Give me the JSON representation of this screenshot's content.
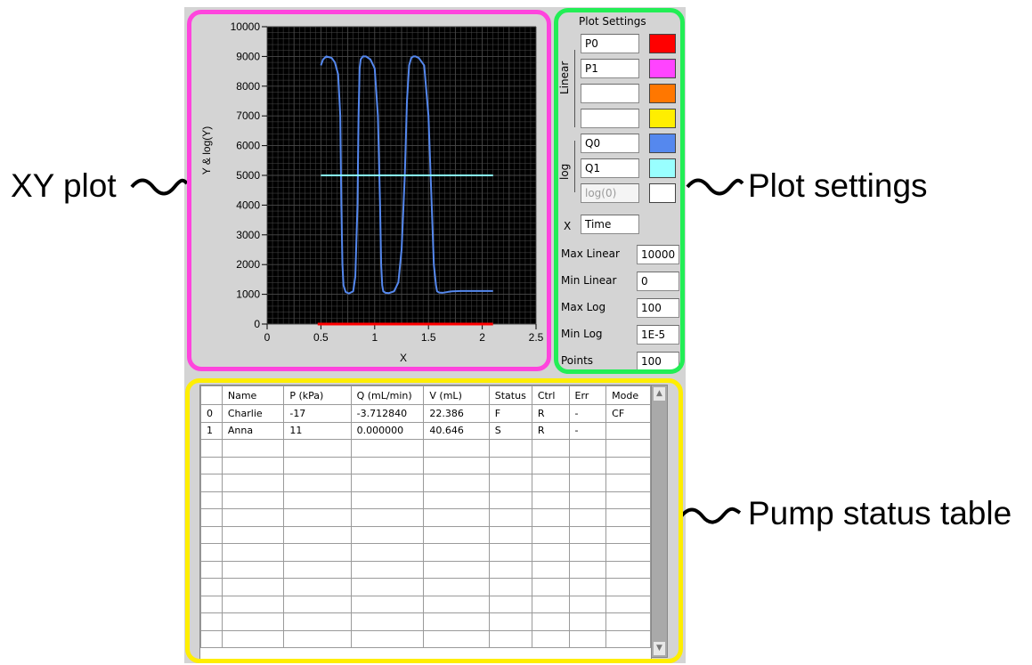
{
  "callouts": {
    "xy_plot": "XY plot",
    "plot_settings": "Plot settings",
    "pump_table": "Pump status table"
  },
  "plot": {
    "ylabel": "Y & log(Y)",
    "xlabel": "X",
    "y_ticks": [
      "10000",
      "9000",
      "8000",
      "7000",
      "6000",
      "5000",
      "4000",
      "3000",
      "2000",
      "1000",
      "0"
    ],
    "x_ticks": [
      "0",
      "0.5",
      "1",
      "1.5",
      "2",
      "2.5"
    ],
    "background": "#000000",
    "grid_color": "#4a4a4a"
  },
  "chart_data": {
    "type": "line",
    "xlabel": "X",
    "ylabel": "Y & log(Y)",
    "xlim": [
      0,
      2.5
    ],
    "ylim": [
      0,
      10000
    ],
    "grid": true,
    "series": [
      {
        "name": "P0",
        "color": "#ff0000",
        "x": [
          0.47,
          2.1
        ],
        "y": [
          0,
          0
        ]
      },
      {
        "name": "Q0",
        "color": "#5588ee",
        "x": [
          0.5,
          0.52,
          0.55,
          0.6,
          0.63,
          0.66,
          0.68,
          0.69,
          0.7,
          0.71,
          0.73,
          0.76,
          0.8,
          0.82,
          0.84,
          0.85,
          0.86,
          0.87,
          0.89,
          0.92,
          0.96,
          1.0,
          1.03,
          1.05,
          1.06,
          1.07,
          1.08,
          1.1,
          1.13,
          1.18,
          1.22,
          1.25,
          1.28,
          1.3,
          1.32,
          1.34,
          1.36,
          1.38,
          1.41,
          1.46,
          1.5,
          1.53,
          1.55,
          1.57,
          1.58,
          1.6,
          1.63,
          1.68,
          1.72,
          1.8,
          1.9,
          2.0,
          2.1
        ],
        "y": [
          8700,
          8900,
          9000,
          8950,
          8800,
          8400,
          7000,
          4000,
          2000,
          1300,
          1080,
          1030,
          1100,
          1600,
          4000,
          7000,
          8600,
          8900,
          9000,
          9000,
          8900,
          8600,
          7000,
          4000,
          2000,
          1300,
          1100,
          1050,
          1040,
          1100,
          1400,
          2500,
          5000,
          7500,
          8700,
          8950,
          9000,
          9000,
          8950,
          8700,
          7000,
          4000,
          2000,
          1300,
          1100,
          1060,
          1050,
          1080,
          1100,
          1110,
          1110,
          1110,
          1110
        ]
      },
      {
        "name": "Q1",
        "color": "#88ffff",
        "x": [
          0.5,
          2.1
        ],
        "y": [
          5000,
          5000
        ]
      }
    ]
  },
  "settings": {
    "title": "Plot Settings",
    "linear_label": "Linear",
    "log_label": "log",
    "channels": [
      {
        "name": "P0",
        "color": "#ff0000",
        "disabled": false
      },
      {
        "name": "P1",
        "color": "#ff44ff",
        "disabled": false
      },
      {
        "name": "",
        "color": "#ff7700",
        "disabled": false
      },
      {
        "name": "",
        "color": "#ffee00",
        "disabled": false
      },
      {
        "name": "Q0",
        "color": "#5588ee",
        "disabled": false
      },
      {
        "name": "Q1",
        "color": "#99ffff",
        "disabled": false
      },
      {
        "name": "log(0)",
        "color": "#ffffff",
        "disabled": true
      }
    ],
    "x_label": "X",
    "x_value": "Time",
    "max_linear_label": "Max Linear",
    "max_linear": "10000",
    "min_linear_label": "Min Linear",
    "min_linear": "0",
    "max_log_label": "Max Log",
    "max_log": "100",
    "min_log_label": "Min Log",
    "min_log": "1E-5",
    "points_label": "Points",
    "points": "100"
  },
  "table": {
    "headers": [
      "",
      "Name",
      "P (kPa)",
      "Q (mL/min)",
      "V (mL)",
      "Status",
      "Ctrl",
      "Err",
      "Mode"
    ],
    "rows": [
      [
        "0",
        "Charlie",
        "-17",
        "-3.712840",
        "22.386",
        "F",
        "R",
        "-",
        "CF"
      ],
      [
        "1",
        "Anna",
        "11",
        "0.000000",
        "40.646",
        "S",
        "R",
        "-",
        ""
      ]
    ],
    "empty_rows": 12
  },
  "frame_colors": {
    "plot": "#ff44dd",
    "settings": "#22ee55",
    "table": "#ffee00"
  }
}
